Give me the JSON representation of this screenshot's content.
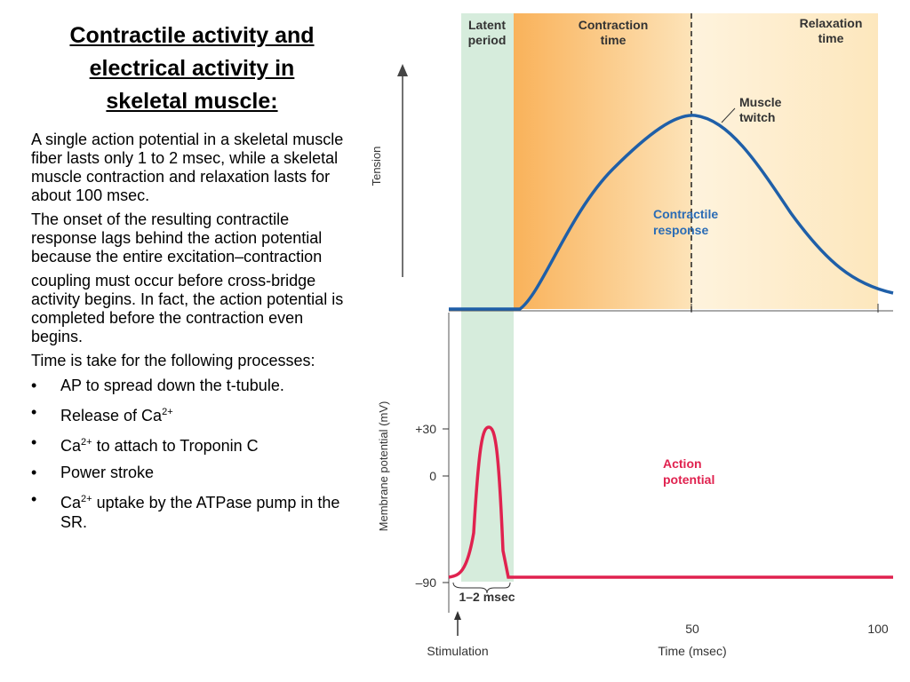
{
  "title": [
    "Contractile activity and",
    "electrical activity in",
    "skeletal muscle:"
  ],
  "paragraphs": [
    "A single action potential in a skeletal muscle fiber lasts only 1 to 2 msec, while a skeletal muscle contraction and relaxation lasts for about 100 msec.",
    "The onset of the resulting contractile response lags behind the action potential because the entire excitation–contraction",
    "coupling must occur before cross-bridge activity begins. In fact, the action potential is completed before the contraction even begins.",
    "Time is take for the following processes:"
  ],
  "bullets": [
    [
      "AP to spread down the t-tubule."
    ],
    [
      "Release of Ca",
      "2+"
    ],
    [
      "Ca",
      "2+",
      " to attach to Troponin C"
    ],
    [
      "Power stroke"
    ],
    [
      "Ca",
      "2+",
      " uptake by the ATPase pump in the SR."
    ]
  ],
  "figure": {
    "phases": {
      "latent": [
        "Latent",
        "period"
      ],
      "contraction": [
        "Contraction",
        "time"
      ],
      "relaxation": [
        "Relaxation",
        "time"
      ]
    },
    "twitch_label": [
      "Muscle",
      "twitch"
    ],
    "response_label": [
      "Contractile",
      "response"
    ],
    "ap_label": [
      "Action",
      "potential"
    ],
    "tension_axis": "Tension",
    "potential_axis": "Membrane potential (mV)",
    "potential_ticks": [
      "+30",
      "0",
      "–90"
    ],
    "time_ticks": [
      "50",
      "100"
    ],
    "duration_label": "1–2 msec",
    "stimulation": "Stimulation",
    "time_axis": "Time (msec)"
  }
}
